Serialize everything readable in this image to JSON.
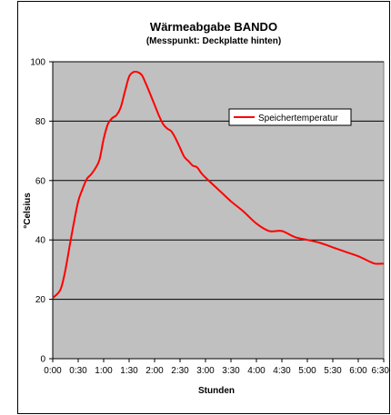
{
  "chart_data": {
    "type": "line",
    "title": "Wärmeabgabe BANDO",
    "subtitle": "(Messpunkt: Deckplatte hinten)",
    "xlabel": "Stunden",
    "ylabel": "°Celsius",
    "ylim": [
      0,
      100
    ],
    "yticks": [
      "0",
      "20",
      "40",
      "60",
      "80",
      "100"
    ],
    "xticks": [
      "0:00",
      "0:30",
      "1:00",
      "1:30",
      "2:00",
      "2:30",
      "3:00",
      "3:30",
      "4:00",
      "4:30",
      "5:00",
      "5:30",
      "6:00",
      "6:30"
    ],
    "xlim_hours": [
      0,
      6.5
    ],
    "grid": "horizontal",
    "plot_background": "#c0c0c0",
    "line_color": "#ff0000",
    "legend_position": "right",
    "series": [
      {
        "name": "Speichertemperatur",
        "x": [
          0.0,
          0.1,
          0.167,
          0.25,
          0.333,
          0.417,
          0.5,
          0.583,
          0.667,
          0.75,
          0.833,
          0.917,
          1.0,
          1.083,
          1.167,
          1.25,
          1.333,
          1.417,
          1.5,
          1.583,
          1.667,
          1.75,
          1.833,
          1.917,
          2.0,
          2.083,
          2.167,
          2.25,
          2.333,
          2.417,
          2.5,
          2.583,
          2.667,
          2.75,
          2.833,
          2.917,
          3.0,
          3.25,
          3.5,
          3.75,
          4.0,
          4.25,
          4.5,
          4.75,
          5.0,
          5.25,
          5.5,
          5.75,
          6.0,
          6.25,
          6.333,
          6.5
        ],
        "y": [
          20.5,
          22,
          24,
          30,
          38,
          46,
          53,
          57,
          60.5,
          62,
          64,
          67,
          74,
          79,
          81,
          82,
          84.5,
          90,
          95,
          96.5,
          96.5,
          95.5,
          92.5,
          89,
          85.5,
          82,
          79,
          77.5,
          76.5,
          74,
          71,
          68,
          66.5,
          65,
          64.5,
          62.5,
          61,
          57,
          53,
          49.5,
          45.5,
          43,
          43,
          41,
          40,
          39,
          37.5,
          36,
          34.5,
          32.5,
          32,
          32
        ]
      }
    ]
  }
}
